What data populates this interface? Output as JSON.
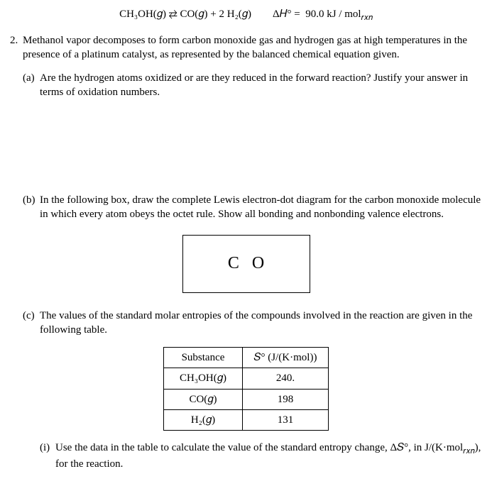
{
  "equation": "CH₃OH(𝑔) ⇄ CO(𝑔) + 2 H₂(𝑔)  Δ𝐻° =  90.0 kJ / mol",
  "equation_sub": "𝑟𝑥𝑛",
  "problem_number": "2.",
  "problem_text": "Methanol vapor decomposes to form carbon monoxide gas and hydrogen gas at high temperatures in the presence of a platinum catalyst, as represented by the balanced chemical equation given.",
  "part_a_label": "(a)",
  "part_a_text": "Are the hydrogen atoms oxidized or are they reduced in the forward reaction? Justify your answer in terms of oxidation numbers.",
  "part_b_label": "(b)",
  "part_b_text": "In the following box, draw the complete Lewis electron-dot diagram for the carbon monoxide molecule in which every atom obeys the octet rule. Show all bonding and nonbonding valence electrons.",
  "lewis_c": "C",
  "lewis_o": "O",
  "part_c_label": "(c)",
  "part_c_text": "The values of the standard molar entropies of the compounds involved in the reaction are given in the following table.",
  "table": {
    "header_substance": "Substance",
    "header_entropy": "𝑆° (J/(K·mol))",
    "rows": [
      {
        "substance": "CH₃OH(𝑔)",
        "value": "240."
      },
      {
        "substance": "CO(𝑔)",
        "value": "198"
      },
      {
        "substance": "H₂(𝑔)",
        "value": "131"
      }
    ]
  },
  "part_c_i_label": "(i)",
  "part_c_i_text": "Use the data in the table to calculate the value of the standard entropy change, Δ𝑆°, in J/(K·mol",
  "part_c_i_sub": "𝑟𝑥𝑛",
  "part_c_i_tail": "), for the reaction."
}
